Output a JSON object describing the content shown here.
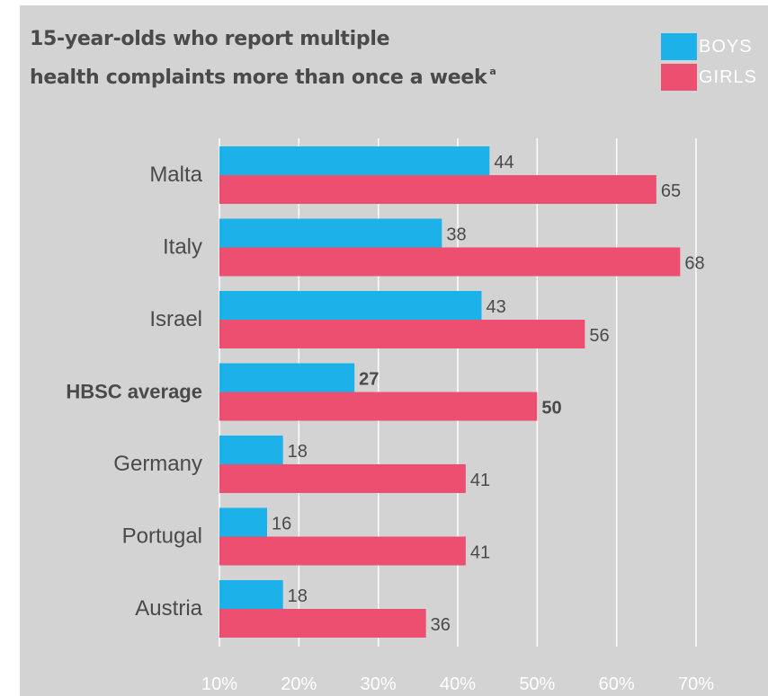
{
  "title_line1": "15-year-olds who report multiple",
  "title_line2": "health complaints more than once a week",
  "title_footnote": "a",
  "legend": [
    {
      "label": "BOYS",
      "color": "#1cb1e8"
    },
    {
      "label": "GIRLS",
      "color": "#ec4f6f"
    }
  ],
  "chart_data": {
    "type": "bar",
    "orientation": "horizontal",
    "categories": [
      "Malta",
      "Italy",
      "Israel",
      "HBSC average",
      "Germany",
      "Portugal",
      "Austria"
    ],
    "highlight_category": "HBSC average",
    "series": [
      {
        "name": "BOYS",
        "values": [
          44,
          38,
          43,
          27,
          18,
          16,
          18
        ],
        "color": "#1cb1e8"
      },
      {
        "name": "GIRLS",
        "values": [
          65,
          68,
          56,
          50,
          41,
          41,
          36
        ],
        "color": "#ec4f6f"
      }
    ],
    "xlim": [
      10,
      70
    ],
    "xticks": [
      "10%",
      "20%",
      "30%",
      "40%",
      "50%",
      "60%",
      "70%"
    ],
    "grid": true
  }
}
